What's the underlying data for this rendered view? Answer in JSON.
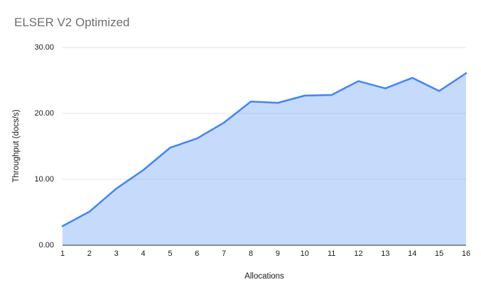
{
  "title": "ELSER V2 Optimized",
  "chart_data": {
    "type": "area",
    "title": "ELSER V2 Optimized",
    "xlabel": "Allocations",
    "ylabel": "Throughput (docs/s)",
    "categories": [
      1,
      2,
      3,
      4,
      5,
      6,
      7,
      8,
      9,
      10,
      11,
      12,
      13,
      14,
      15,
      16
    ],
    "series": [
      {
        "name": "Throughput (docs/s)",
        "values": [
          2.9,
          5.1,
          8.6,
          11.4,
          14.8,
          16.2,
          18.6,
          21.8,
          21.6,
          22.7,
          22.8,
          24.9,
          23.8,
          25.4,
          23.4,
          26.1
        ]
      }
    ],
    "ylim": [
      0,
      30
    ],
    "yticks": [
      {
        "value": 0,
        "label": "0.00"
      },
      {
        "value": 10,
        "label": "10.00"
      },
      {
        "value": 20,
        "label": "20.00"
      },
      {
        "value": 30,
        "label": "30.00"
      }
    ],
    "grid": true,
    "legend": "none",
    "colors": {
      "series_line": "#4285f4",
      "series_fill": "rgba(66,133,244,0.30)",
      "gridline": "#e6e6e6",
      "axis_line": "#333333",
      "title_text": "#6e6e6e",
      "label_text": "#1a1a1a"
    }
  }
}
